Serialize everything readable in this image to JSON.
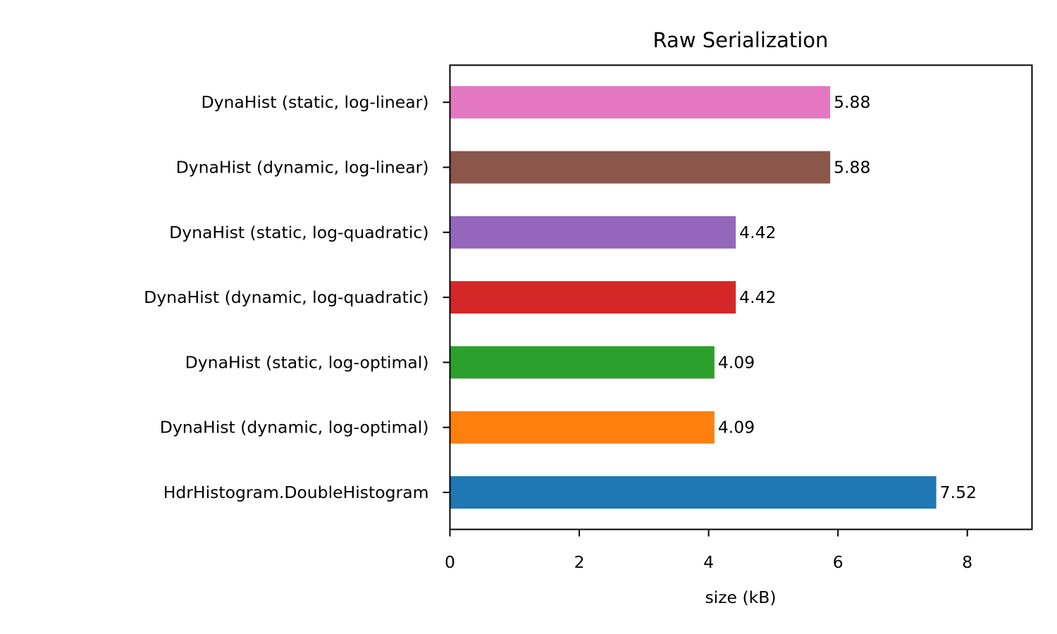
{
  "chart_data": {
    "type": "bar",
    "orientation": "horizontal",
    "title": "Raw Serialization",
    "xlabel": "size (kB)",
    "ylabel": "",
    "xlim": [
      0,
      9
    ],
    "xticks": [
      0,
      2,
      4,
      6,
      8
    ],
    "grid": false,
    "categories": [
      "HdrHistogram.DoubleHistogram",
      "DynaHist (dynamic, log-optimal)",
      "DynaHist (static, log-optimal)",
      "DynaHist (dynamic, log-quadratic)",
      "DynaHist (static, log-quadratic)",
      "DynaHist (dynamic, log-linear)",
      "DynaHist (static, log-linear)"
    ],
    "values": [
      7.52,
      4.09,
      4.09,
      4.42,
      4.42,
      5.88,
      5.88
    ],
    "value_labels": [
      "7.52",
      "4.09",
      "4.09",
      "4.42",
      "4.42",
      "5.88",
      "5.88"
    ],
    "colors": [
      "#1f77b4",
      "#ff7f0e",
      "#2ca02c",
      "#d62728",
      "#9467bd",
      "#8c564b",
      "#e377c2"
    ]
  }
}
